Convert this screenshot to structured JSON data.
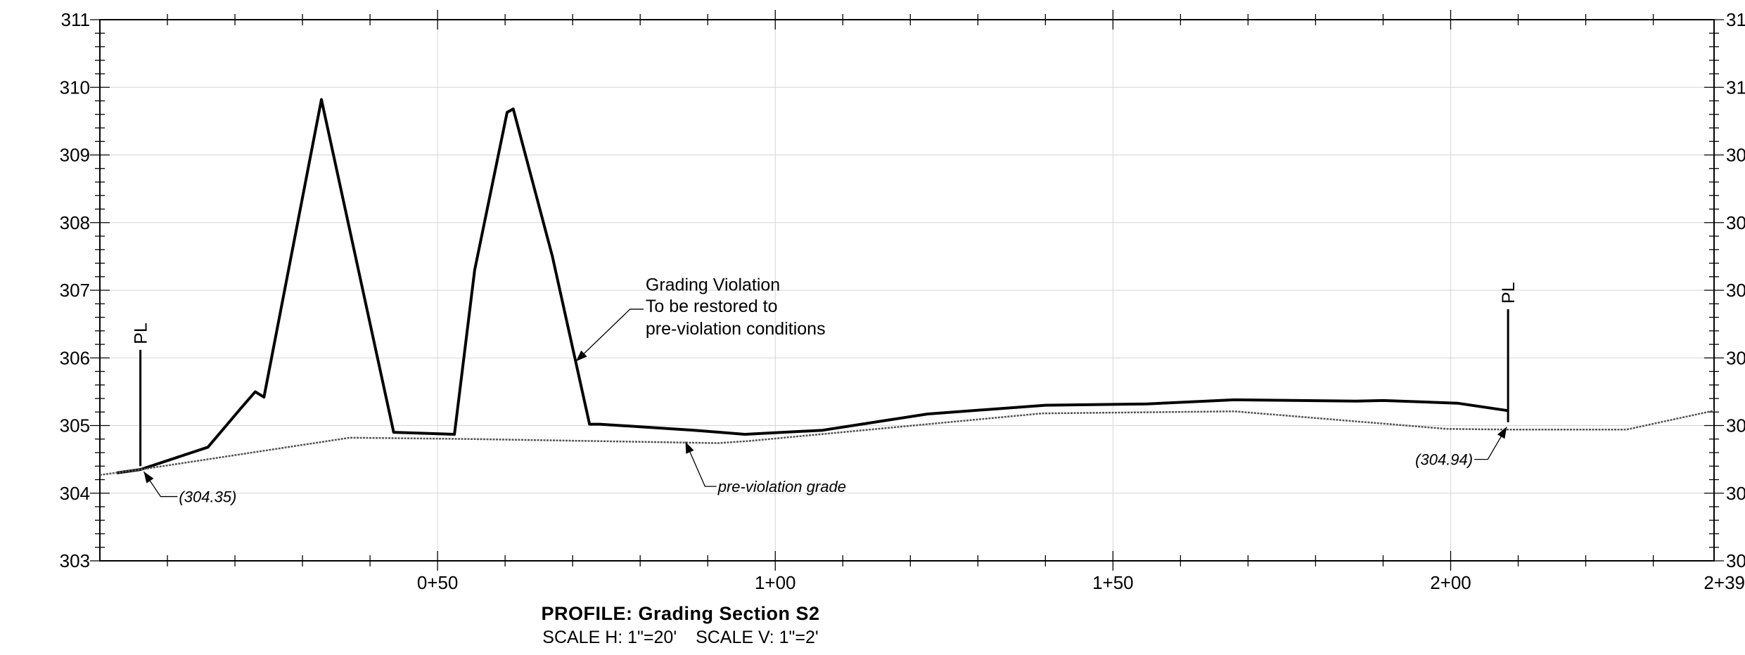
{
  "chart_data": {
    "type": "line",
    "title": "PROFILE:  Grading Section S2",
    "xlabel": "",
    "ylabel": "",
    "xlim": [
      0,
      239
    ],
    "ylim": [
      303,
      311
    ],
    "x_ticks": [
      {
        "value": 50,
        "label": "0+50"
      },
      {
        "value": 100,
        "label": "1+00"
      },
      {
        "value": 150,
        "label": "1+50"
      },
      {
        "value": 200,
        "label": "2+00"
      },
      {
        "value": 239,
        "label": "2+39"
      }
    ],
    "y_ticks": [
      303,
      304,
      305,
      306,
      307,
      308,
      309,
      310,
      311
    ],
    "y_ticks_right": [
      "30",
      "30",
      "30",
      "30",
      "30",
      "30",
      "30",
      "31",
      "31"
    ],
    "grid": true,
    "series": [
      {
        "style": "bold",
        "color": "#000000",
        "points": [
          [
            2.5,
            304.3
          ],
          [
            6,
            304.35
          ],
          [
            16,
            304.68
          ],
          [
            21,
            305.27
          ],
          [
            23,
            305.5
          ],
          [
            24.3,
            305.42
          ],
          [
            32.8,
            309.82
          ],
          [
            43.5,
            304.9
          ],
          [
            52.5,
            304.87
          ],
          [
            55.5,
            307.3
          ],
          [
            60.3,
            309.63
          ],
          [
            61.2,
            309.68
          ],
          [
            67,
            307.5
          ],
          [
            72.5,
            305.02
          ],
          [
            74,
            305.02
          ],
          [
            88,
            304.93
          ],
          [
            95.5,
            304.87
          ],
          [
            107,
            304.93
          ],
          [
            122.5,
            305.17
          ],
          [
            140,
            305.3
          ],
          [
            155,
            305.32
          ],
          [
            168,
            305.38
          ],
          [
            186,
            305.36
          ],
          [
            190,
            305.37
          ],
          [
            201,
            305.33
          ],
          [
            208.5,
            305.22
          ]
        ]
      },
      {
        "name": "pre-violation grade",
        "style": "thin",
        "color": "#555555",
        "points": [
          [
            0,
            304.27
          ],
          [
            6,
            304.35
          ],
          [
            37,
            304.82
          ],
          [
            55,
            304.8
          ],
          [
            91.5,
            304.74
          ],
          [
            96,
            304.77
          ],
          [
            139.5,
            305.18
          ],
          [
            168,
            305.21
          ],
          [
            199.5,
            304.95
          ],
          [
            209,
            304.94
          ],
          [
            226,
            304.94
          ],
          [
            239,
            305.22
          ]
        ]
      }
    ],
    "annotations": {
      "violation": [
        "Grading Violation",
        "To be restored to",
        "pre-violation conditions"
      ],
      "pre_violation": "pre-violation grade",
      "pl_left_label": "PL",
      "pl_left_elev": "(304.35)",
      "pl_right_label": "PL",
      "pl_right_elev": "(304.94)"
    },
    "pl_markers": [
      {
        "x": 6,
        "y_bottom": 304.4,
        "y_top": 306.12
      },
      {
        "x": 208.5,
        "y_bottom": 305.05,
        "y_top": 306.72
      }
    ]
  },
  "footer": {
    "title": "PROFILE:  Grading Section S2",
    "scale_h": "SCALE H: 1\"=20'",
    "scale_v": "SCALE V: 1\"=2'"
  }
}
